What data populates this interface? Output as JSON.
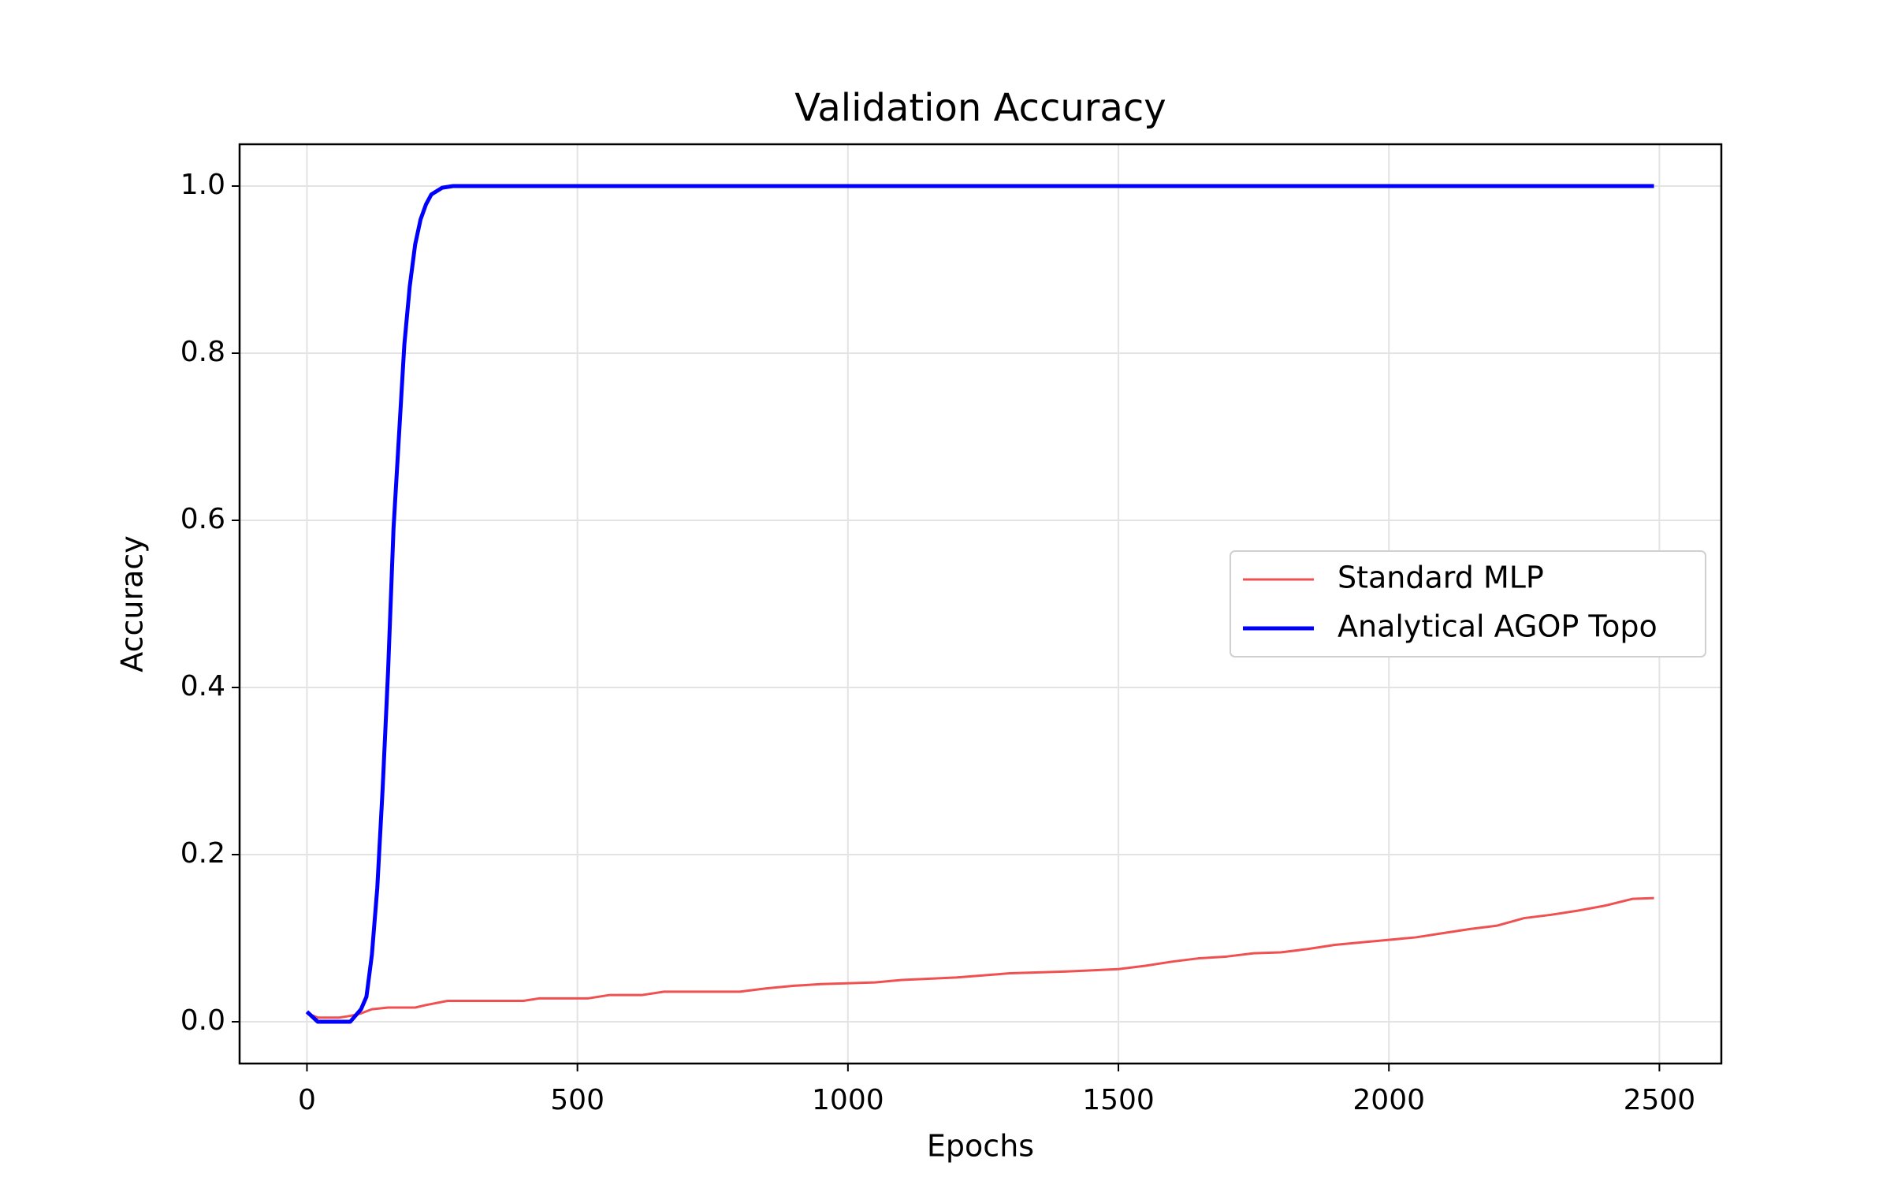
{
  "chart_data": {
    "type": "line",
    "title": "Validation Accuracy",
    "x_label": "Epochs",
    "y_label": "Accuracy",
    "xlim": [
      -124.5,
      2614.5
    ],
    "ylim": [
      -0.05,
      1.05
    ],
    "xticks": [
      0,
      500,
      1000,
      1500,
      2000,
      2500
    ],
    "yticks": [
      {
        "value": 0,
        "label": "0.0"
      },
      {
        "value": 0.2,
        "label": "0.2"
      },
      {
        "value": 0.4,
        "label": "0.4"
      },
      {
        "value": 0.6,
        "label": "0.6"
      },
      {
        "value": 0.8,
        "label": "0.8"
      },
      {
        "value": 1,
        "label": "1.0"
      }
    ],
    "grid": true,
    "legend_position": "center right",
    "series": [
      {
        "name": "Standard MLP",
        "color": "#f05050",
        "width": 3,
        "x": [
          0,
          20,
          40,
          60,
          80,
          100,
          120,
          150,
          200,
          220,
          260,
          400,
          430,
          520,
          560,
          620,
          660,
          800,
          850,
          900,
          950,
          1050,
          1100,
          1200,
          1300,
          1400,
          1500,
          1550,
          1600,
          1650,
          1700,
          1750,
          1800,
          1850,
          1900,
          1950,
          2000,
          2050,
          2100,
          2150,
          2200,
          2250,
          2300,
          2350,
          2400,
          2450,
          2490
        ],
        "values": [
          0.01,
          0.005,
          0.005,
          0.005,
          0.007,
          0.01,
          0.015,
          0.017,
          0.017,
          0.02,
          0.025,
          0.025,
          0.028,
          0.028,
          0.032,
          0.032,
          0.036,
          0.036,
          0.04,
          0.043,
          0.045,
          0.047,
          0.05,
          0.053,
          0.058,
          0.06,
          0.063,
          0.067,
          0.072,
          0.076,
          0.078,
          0.082,
          0.083,
          0.087,
          0.092,
          0.095,
          0.098,
          0.101,
          0.106,
          0.111,
          0.115,
          0.124,
          0.128,
          0.133,
          0.139,
          0.147,
          0.148
        ]
      },
      {
        "name": "Analytical AGOP Topo",
        "color": "#0000ff",
        "width": 5,
        "x": [
          0,
          20,
          40,
          60,
          80,
          100,
          110,
          120,
          130,
          140,
          150,
          160,
          170,
          180,
          190,
          200,
          210,
          220,
          230,
          250,
          270,
          2490
        ],
        "values": [
          0.012,
          0.0,
          0.0,
          0.0,
          0.0,
          0.015,
          0.03,
          0.08,
          0.16,
          0.28,
          0.42,
          0.59,
          0.7,
          0.81,
          0.88,
          0.93,
          0.96,
          0.978,
          0.99,
          0.998,
          1.0,
          1.0
        ]
      }
    ]
  }
}
